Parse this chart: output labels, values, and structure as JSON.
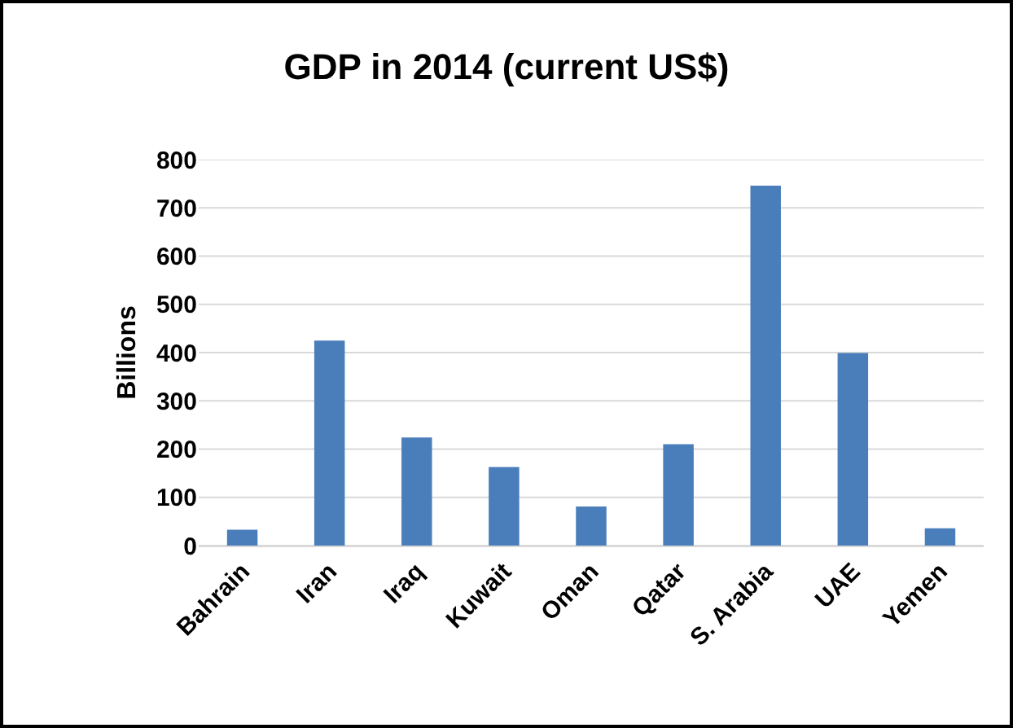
{
  "chart_data": {
    "type": "bar",
    "title": "GDP in 2014 (current US$)",
    "ylabel": "Billions",
    "categories": [
      "Bahrain",
      "Iran",
      "Iraq",
      "Kuwait",
      "Oman",
      "Qatar",
      "S. Arabia",
      "UAE",
      "Yemen"
    ],
    "values": [
      33,
      425,
      224,
      163,
      81,
      210,
      746,
      399,
      36
    ],
    "color": "#4a7ebb",
    "ylim": [
      0,
      800
    ],
    "yticks": [
      0,
      100,
      200,
      300,
      400,
      500,
      600,
      700,
      800
    ],
    "grid": "y"
  }
}
